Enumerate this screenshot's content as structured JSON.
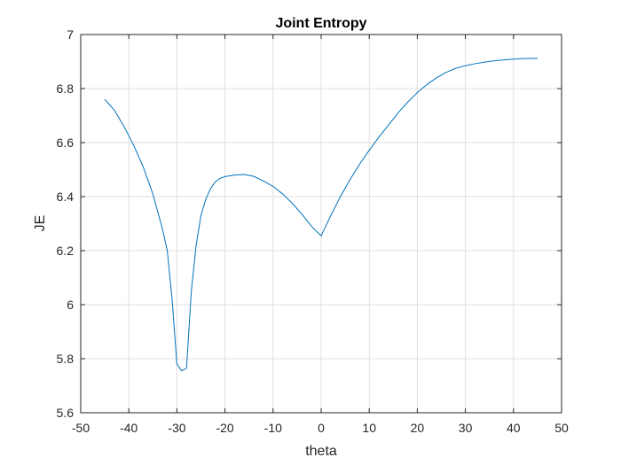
{
  "chart_data": {
    "type": "line",
    "title": "Joint Entropy",
    "xlabel": "theta",
    "ylabel": "JE",
    "xlim": [
      -50,
      50
    ],
    "ylim": [
      5.6,
      7
    ],
    "xticks": [
      -50,
      -40,
      -30,
      -20,
      -10,
      0,
      10,
      20,
      30,
      40,
      50
    ],
    "yticks": [
      5.6,
      5.8,
      6,
      6.2,
      6.4,
      6.6,
      6.8,
      7
    ],
    "xtick_labels": [
      "-50",
      "-40",
      "-30",
      "-20",
      "-10",
      "0",
      "10",
      "20",
      "30",
      "40",
      "50"
    ],
    "ytick_labels": [
      "5.6",
      "5.8",
      "6",
      "6.2",
      "6.4",
      "6.6",
      "6.8",
      "7"
    ],
    "grid": true,
    "line_color": "#0072BD",
    "series": [
      {
        "x": [
          -45,
          -43,
          -41,
          -39,
          -37,
          -35,
          -33,
          -32,
          -31,
          -30,
          -29,
          -28,
          -27,
          -26,
          -25,
          -24,
          -23,
          -22,
          -21,
          -20,
          -18,
          -16,
          -14,
          -12,
          -10,
          -8,
          -6,
          -4,
          -2,
          0,
          2,
          4,
          6,
          8,
          10,
          12,
          14,
          16,
          18,
          20,
          22,
          24,
          26,
          28,
          30,
          32,
          34,
          36,
          38,
          40,
          42,
          44,
          45
        ],
        "y": [
          6.76,
          6.72,
          6.66,
          6.59,
          6.51,
          6.41,
          6.28,
          6.2,
          6.02,
          5.78,
          5.755,
          5.765,
          6.05,
          6.22,
          6.33,
          6.39,
          6.43,
          6.455,
          6.468,
          6.474,
          6.48,
          6.482,
          6.475,
          6.458,
          6.438,
          6.41,
          6.375,
          6.335,
          6.29,
          6.255,
          6.33,
          6.4,
          6.463,
          6.52,
          6.572,
          6.62,
          6.665,
          6.71,
          6.75,
          6.785,
          6.815,
          6.84,
          6.86,
          6.875,
          6.885,
          6.892,
          6.898,
          6.903,
          6.906,
          6.909,
          6.911,
          6.912,
          6.912
        ]
      }
    ]
  }
}
